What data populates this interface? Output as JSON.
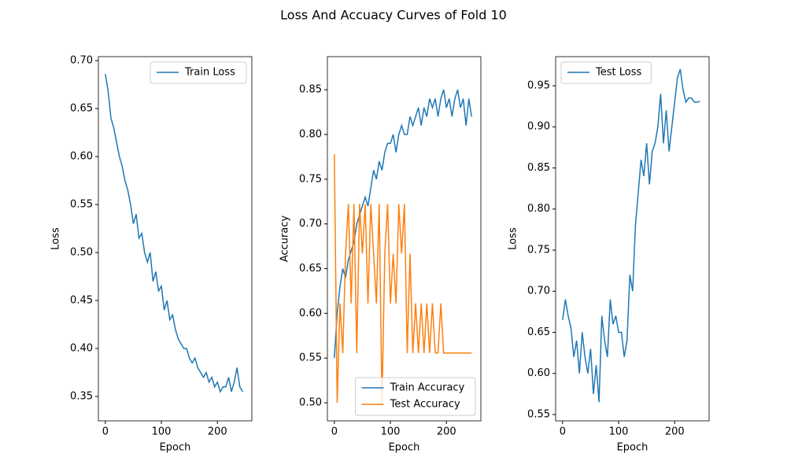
{
  "title": "Loss And Accuacy Curves of Fold 10",
  "chart_data": [
    {
      "type": "line",
      "xlabel": "Epoch",
      "ylabel": "Loss",
      "x": [
        0,
        5,
        10,
        15,
        20,
        25,
        30,
        35,
        40,
        45,
        50,
        55,
        60,
        65,
        70,
        75,
        80,
        85,
        90,
        95,
        100,
        105,
        110,
        115,
        120,
        125,
        130,
        135,
        140,
        145,
        150,
        155,
        160,
        165,
        170,
        175,
        180,
        185,
        190,
        195,
        200,
        205,
        210,
        215,
        220,
        225,
        230,
        235,
        240,
        245
      ],
      "series": [
        {
          "name": "Train Loss",
          "color": "#1f77b4",
          "values": [
            0.686,
            0.668,
            0.64,
            0.63,
            0.615,
            0.6,
            0.59,
            0.575,
            0.565,
            0.55,
            0.53,
            0.54,
            0.515,
            0.52,
            0.5,
            0.49,
            0.5,
            0.47,
            0.48,
            0.46,
            0.465,
            0.44,
            0.45,
            0.43,
            0.435,
            0.42,
            0.41,
            0.405,
            0.4,
            0.4,
            0.39,
            0.385,
            0.39,
            0.38,
            0.375,
            0.37,
            0.375,
            0.365,
            0.37,
            0.36,
            0.365,
            0.355,
            0.36,
            0.36,
            0.37,
            0.355,
            0.365,
            0.38,
            0.36,
            0.355
          ]
        }
      ],
      "xlim": [
        -12.45,
        261.45
      ],
      "xticks": [
        0,
        100,
        200
      ],
      "ylim": [
        0.3246,
        0.7041
      ],
      "yticks": [
        0.35,
        {
          "value": 0.4,
          "label": "0.40"
        },
        0.45,
        {
          "value": 0.5,
          "label": "0.50"
        },
        0.55,
        {
          "value": 0.6,
          "label": "0.60"
        },
        0.65,
        {
          "value": 0.7,
          "label": "0.70"
        }
      ],
      "legend": "upper right"
    },
    {
      "type": "line",
      "xlabel": "Epoch",
      "ylabel": "Accuracy",
      "x": [
        0,
        5,
        10,
        15,
        20,
        25,
        30,
        35,
        40,
        45,
        50,
        55,
        60,
        65,
        70,
        75,
        80,
        85,
        90,
        95,
        100,
        105,
        110,
        115,
        120,
        125,
        130,
        135,
        140,
        145,
        150,
        155,
        160,
        165,
        170,
        175,
        180,
        185,
        190,
        195,
        200,
        205,
        210,
        215,
        220,
        225,
        230,
        235,
        240,
        245
      ],
      "series": [
        {
          "name": "Train Accuracy",
          "color": "#1f77b4",
          "values": [
            0.55,
            0.6,
            0.63,
            0.65,
            0.64,
            0.66,
            0.67,
            0.68,
            0.7,
            0.71,
            0.72,
            0.73,
            0.72,
            0.74,
            0.76,
            0.75,
            0.77,
            0.76,
            0.78,
            0.79,
            0.79,
            0.8,
            0.78,
            0.8,
            0.81,
            0.8,
            0.8,
            0.82,
            0.81,
            0.82,
            0.83,
            0.81,
            0.83,
            0.82,
            0.84,
            0.83,
            0.84,
            0.82,
            0.84,
            0.85,
            0.83,
            0.84,
            0.82,
            0.84,
            0.85,
            0.83,
            0.84,
            0.81,
            0.84,
            0.82
          ]
        },
        {
          "name": "Test Accuracy",
          "color": "#ff7f0e",
          "values": [
            0.7778,
            0.5,
            0.6111,
            0.5556,
            0.6667,
            0.7222,
            0.6111,
            0.7222,
            0.5556,
            0.7222,
            0.6667,
            0.7222,
            0.6111,
            0.7222,
            0.6667,
            0.6111,
            0.7222,
            0.5,
            0.6667,
            0.7222,
            0.6111,
            0.6667,
            0.6111,
            0.7222,
            0.6667,
            0.7222,
            0.5556,
            0.6667,
            0.5556,
            0.6111,
            0.5556,
            0.6111,
            0.5556,
            0.6111,
            0.5556,
            0.6111,
            0.5556,
            0.5556,
            0.6111,
            0.5556,
            0.5556,
            0.5556,
            0.5556,
            0.5556,
            0.5556,
            0.5556,
            0.5556,
            0.5556,
            0.5556,
            0.5556
          ]
        }
      ],
      "xlim": [
        -12.45,
        261.45
      ],
      "xticks": [
        0,
        100,
        200
      ],
      "ylim": [
        0.4798,
        0.887
      ],
      "yticks": [
        {
          "value": 0.5,
          "label": "0.50"
        },
        0.55,
        {
          "value": 0.6,
          "label": "0.60"
        },
        0.65,
        {
          "value": 0.7,
          "label": "0.70"
        },
        0.75,
        {
          "value": 0.8,
          "label": "0.80"
        },
        0.85
      ],
      "legend": "lower right"
    },
    {
      "type": "line",
      "xlabel": "Epoch",
      "ylabel": "Loss",
      "x": [
        0,
        5,
        10,
        15,
        20,
        25,
        30,
        35,
        40,
        45,
        50,
        55,
        60,
        65,
        70,
        75,
        80,
        85,
        90,
        95,
        100,
        105,
        110,
        115,
        120,
        125,
        130,
        135,
        140,
        145,
        150,
        155,
        160,
        165,
        170,
        175,
        180,
        185,
        190,
        195,
        200,
        205,
        210,
        215,
        220,
        225,
        230,
        235,
        240,
        245
      ],
      "series": [
        {
          "name": "Test Loss",
          "color": "#1f77b4",
          "values": [
            0.665,
            0.69,
            0.67,
            0.655,
            0.62,
            0.64,
            0.6,
            0.65,
            0.62,
            0.6,
            0.63,
            0.575,
            0.61,
            0.565,
            0.67,
            0.64,
            0.62,
            0.69,
            0.66,
            0.67,
            0.65,
            0.65,
            0.62,
            0.64,
            0.72,
            0.7,
            0.78,
            0.82,
            0.86,
            0.84,
            0.88,
            0.83,
            0.87,
            0.88,
            0.9,
            0.94,
            0.88,
            0.92,
            0.87,
            0.9,
            0.93,
            0.96,
            0.97,
            0.945,
            0.93,
            0.935,
            0.935,
            0.93,
            0.93,
            0.931
          ]
        }
      ],
      "xlim": [
        -12.45,
        261.45
      ],
      "xticks": [
        0,
        100,
        200
      ],
      "ylim": [
        0.5423,
        0.9854
      ],
      "yticks": [
        0.55,
        {
          "value": 0.6,
          "label": "0.60"
        },
        0.65,
        {
          "value": 0.7,
          "label": "0.70"
        },
        0.75,
        {
          "value": 0.8,
          "label": "0.80"
        },
        0.85,
        {
          "value": 0.9,
          "label": "0.90"
        },
        0.95
      ],
      "legend": "upper left"
    }
  ]
}
